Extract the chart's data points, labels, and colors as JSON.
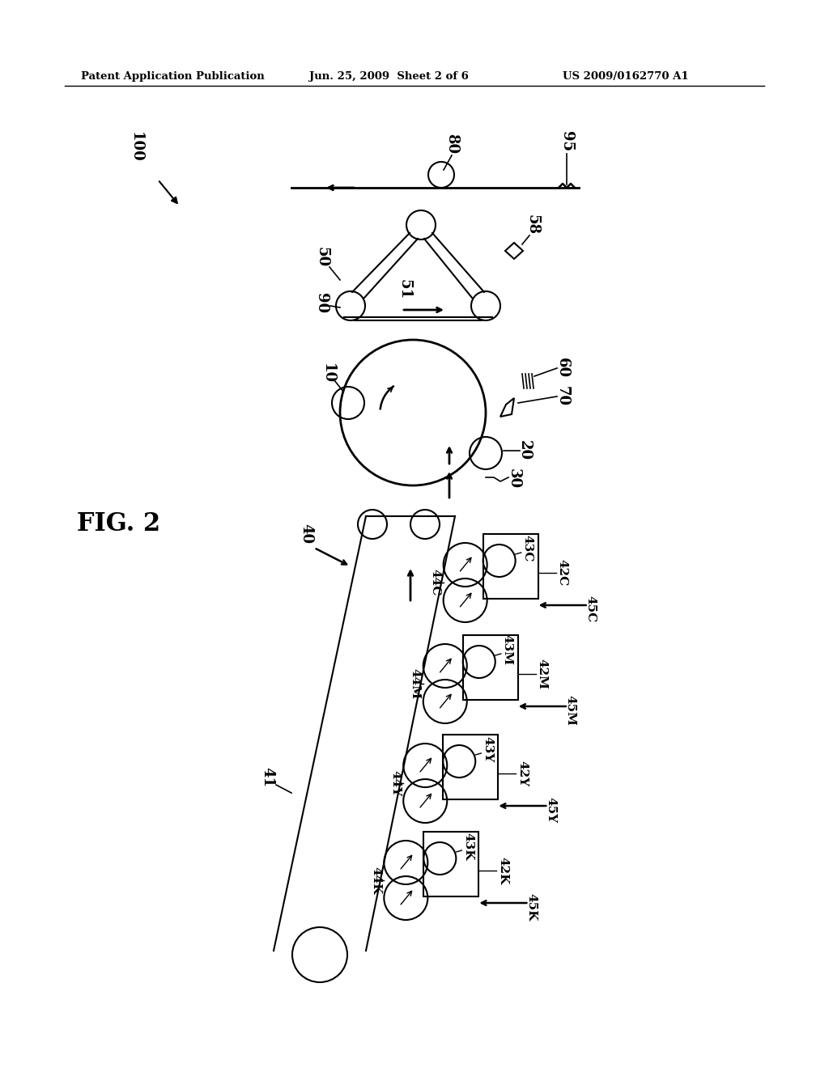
{
  "header_left": "Patent Application Publication",
  "header_mid": "Jun. 25, 2009  Sheet 2 of 6",
  "header_right": "US 2009/0162770 A1",
  "bg_color": "#ffffff",
  "line_color": "#000000"
}
